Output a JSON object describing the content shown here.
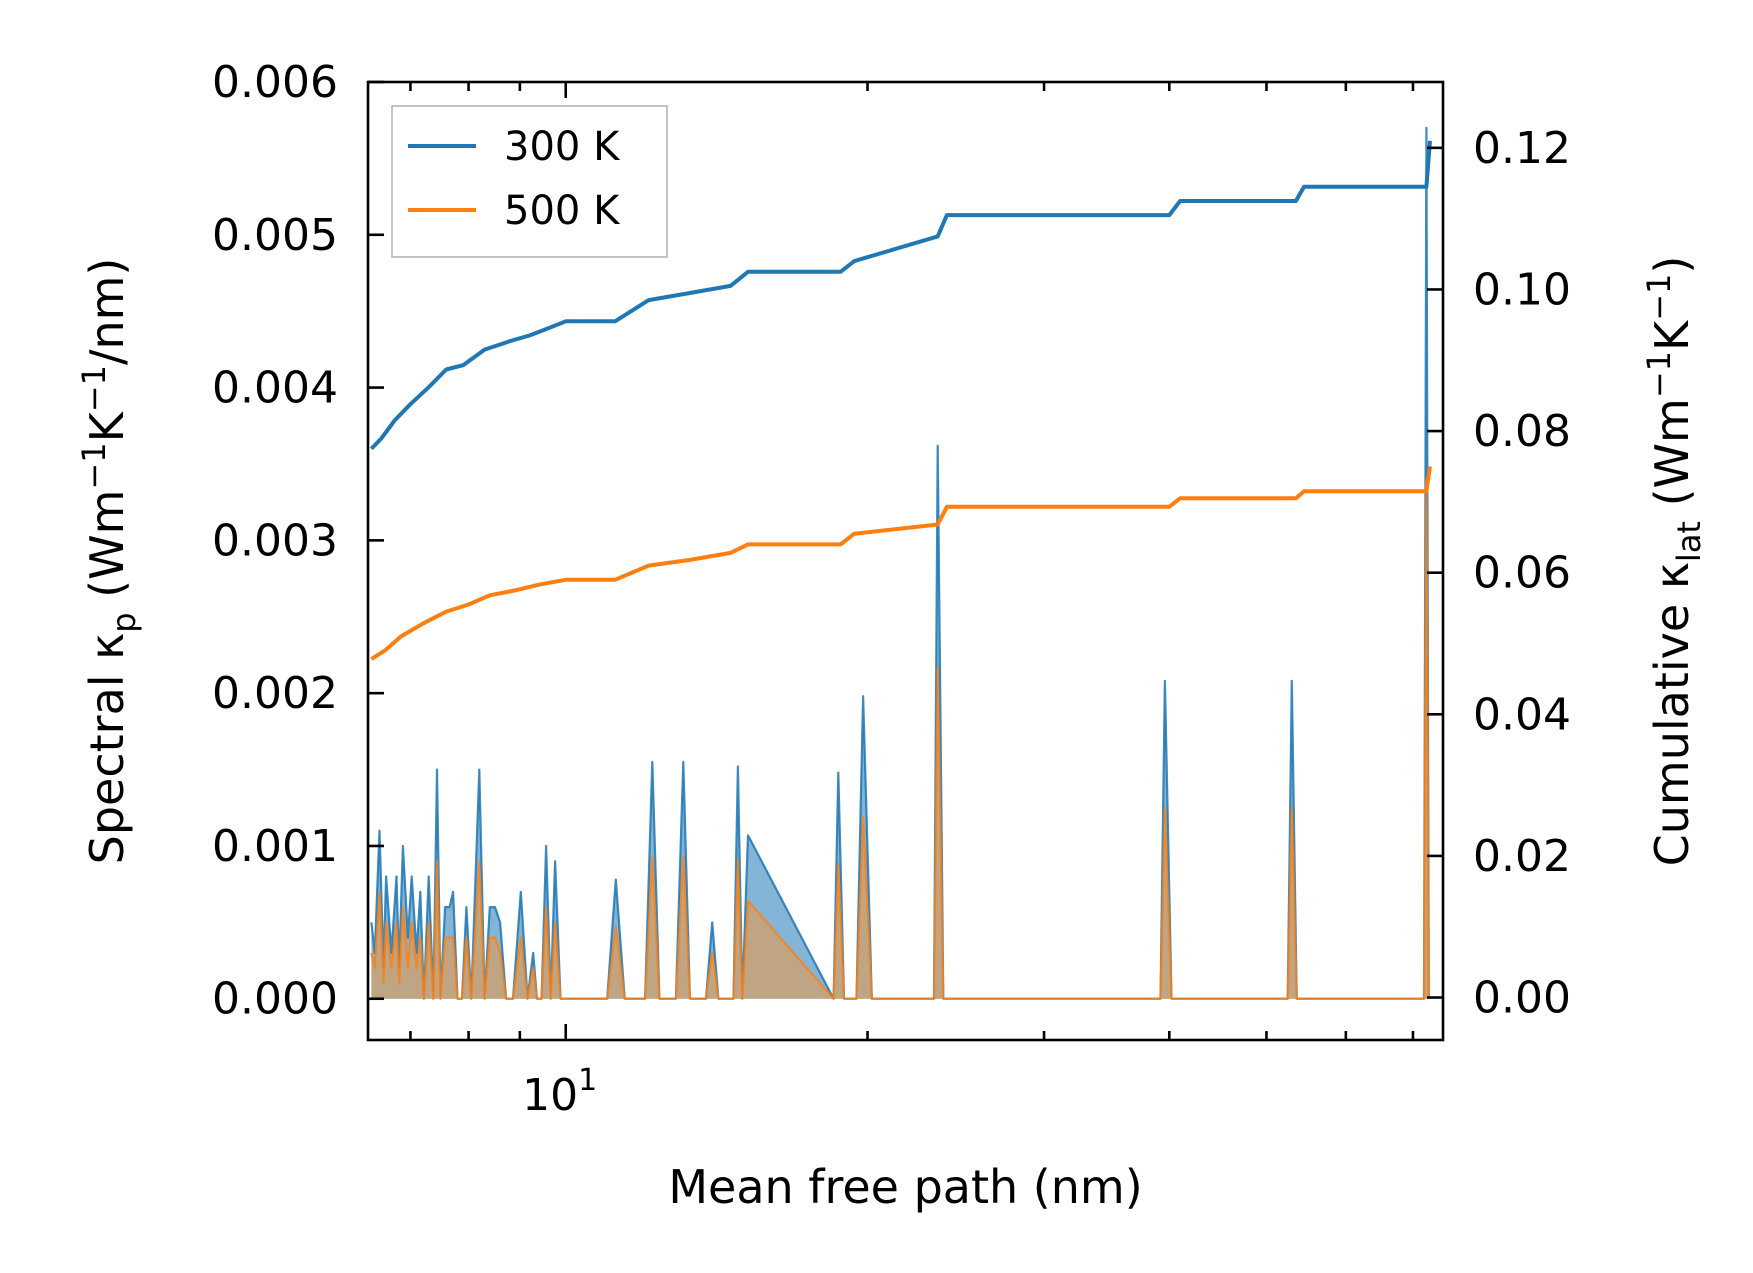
{
  "chart_data": {
    "type": "line",
    "xscale": "log",
    "xlim": [
      6.35,
      75
    ],
    "xlabel": "Mean free path (nm)",
    "xticks": [
      {
        "value": 10,
        "label": "10",
        "exp": "1"
      }
    ],
    "x_minor_ticks": [
      7,
      8,
      9,
      20,
      30,
      40,
      50,
      60,
      70
    ],
    "ylabel_left": {
      "main": "Spectral κ",
      "sub": "p",
      "pre": " (Wm",
      "sup1": "−1",
      "mid": "K",
      "sup2": "−1",
      "post": "/nm)"
    },
    "ylim_left": [
      -0.00027,
      0.006
    ],
    "yticks_left": [
      0,
      0.001,
      0.002,
      0.003,
      0.004,
      0.005,
      0.006
    ],
    "yticks_left_labels": [
      "0.000",
      "0.001",
      "0.002",
      "0.003",
      "0.004",
      "0.005",
      "0.006"
    ],
    "ylabel_right": {
      "main": "Cumulative κ",
      "sub": "lat",
      "pre": " (Wm",
      "sup1": "−1",
      "mid": "K",
      "sup2": "−1",
      "post": ")"
    },
    "ylim_right": [
      -0.006,
      0.1293
    ],
    "yticks_right": [
      0,
      0.02,
      0.04,
      0.06,
      0.08,
      0.1,
      0.12
    ],
    "yticks_right_labels": [
      "0.00",
      "0.02",
      "0.04",
      "0.06",
      "0.08",
      "0.10",
      "0.12"
    ],
    "legend": {
      "position": "top-left",
      "entries": [
        "300 K",
        "500 K"
      ]
    },
    "colors": {
      "300K": "#1f77b4",
      "500K": "#ff7f0e",
      "fill300": "#1f77b4",
      "fill500": "#d4a06a"
    },
    "series": [
      {
        "name": "300 K",
        "axis": "right",
        "kind": "cumulative",
        "x": [
          6.4,
          6.55,
          6.75,
          7.0,
          7.3,
          7.6,
          7.9,
          8.3,
          8.8,
          9.2,
          9.6,
          10.0,
          11.2,
          12.1,
          13.3,
          14.6,
          15.2,
          18.8,
          19.4,
          23.5,
          24.0,
          40.0,
          41.0,
          53.5,
          54.5,
          72.2,
          72.8
        ],
        "y": [
          0.0775,
          0.079,
          0.0815,
          0.0838,
          0.0862,
          0.0887,
          0.0893,
          0.0915,
          0.0927,
          0.0935,
          0.0945,
          0.0955,
          0.0955,
          0.0985,
          0.0995,
          0.1005,
          0.1025,
          0.1025,
          0.104,
          0.1075,
          0.1105,
          0.1105,
          0.1125,
          0.1125,
          0.1145,
          0.1145,
          0.121
        ]
      },
      {
        "name": "500 K",
        "axis": "right",
        "kind": "cumulative",
        "x": [
          6.4,
          6.6,
          6.85,
          7.2,
          7.6,
          8.0,
          8.4,
          8.9,
          9.4,
          10.0,
          11.2,
          12.1,
          13.3,
          14.6,
          15.2,
          18.8,
          19.4,
          23.5,
          24.0,
          40.0,
          41.0,
          53.5,
          54.5,
          72.2,
          72.8
        ],
        "y": [
          0.0478,
          0.049,
          0.051,
          0.0528,
          0.0545,
          0.0555,
          0.0568,
          0.0575,
          0.0583,
          0.059,
          0.059,
          0.061,
          0.0618,
          0.0628,
          0.064,
          0.064,
          0.0655,
          0.0668,
          0.0693,
          0.0693,
          0.0705,
          0.0705,
          0.0715,
          0.0715,
          0.075
        ]
      },
      {
        "name": "300 K spectral",
        "axis": "left",
        "kind": "spectral",
        "x": [
          6.4,
          6.45,
          6.52,
          6.58,
          6.62,
          6.7,
          6.78,
          6.82,
          6.88,
          6.96,
          7.02,
          7.1,
          7.16,
          7.22,
          7.3,
          7.38,
          7.44,
          7.5,
          7.58,
          7.66,
          7.72,
          7.8,
          7.88,
          7.96,
          8.05,
          8.2,
          8.3,
          8.4,
          8.5,
          8.6,
          8.72,
          8.86,
          9.02,
          9.16,
          9.28,
          9.36,
          9.46,
          9.56,
          9.66,
          9.76,
          9.88,
          10.0,
          10.1,
          10.2,
          10.3,
          11.0,
          11.22,
          11.45,
          12.0,
          12.2,
          12.4,
          12.88,
          13.1,
          13.3,
          13.8,
          14.0,
          14.2,
          14.7,
          14.85,
          15.0,
          15.2,
          18.5,
          18.7,
          18.95,
          19.5,
          19.8,
          20.2,
          23.3,
          23.5,
          23.8,
          39.2,
          39.6,
          40.2,
          52.5,
          53.0,
          53.6,
          71.8,
          72.2,
          72.6
        ],
        "y": [
          0.0005,
          0.0003,
          0.0011,
          0.0002,
          0.0008,
          0.0003,
          0.0008,
          0.0002,
          0.001,
          0.0004,
          0.0008,
          0.0003,
          0.0007,
          0.0,
          0.0008,
          0.0,
          0.0015,
          0.0,
          0.0006,
          0.0006,
          0.0007,
          0.0,
          0.0,
          0.0006,
          0.0,
          0.0015,
          0.0,
          0.0006,
          0.0006,
          0.0005,
          0.0,
          0.0,
          0.0007,
          0.0,
          0.0003,
          0.0,
          0.0,
          0.001,
          0.0,
          0.0009,
          0.0,
          0.0,
          0.0,
          0.0,
          0.0,
          0.0,
          0.00078,
          0.0,
          0.0,
          0.00155,
          0.0,
          0.0,
          0.00155,
          0.0,
          0.0,
          0.0005,
          0.0,
          0.0,
          0.00152,
          0.0,
          0.00107,
          0.0,
          0.00148,
          0.0,
          0.0,
          0.00198,
          0.0,
          0.0,
          0.00362,
          0.0,
          0.0,
          0.00208,
          0.0,
          0.0,
          0.00208,
          0.0,
          0.0,
          0.0057,
          0.0
        ]
      },
      {
        "name": "500 K spectral",
        "axis": "left",
        "kind": "spectral",
        "x": [
          6.4,
          6.45,
          6.52,
          6.58,
          6.62,
          6.7,
          6.78,
          6.82,
          6.88,
          6.96,
          7.02,
          7.1,
          7.16,
          7.22,
          7.3,
          7.38,
          7.44,
          7.5,
          7.58,
          7.66,
          7.72,
          7.8,
          7.88,
          7.96,
          8.05,
          8.2,
          8.3,
          8.4,
          8.5,
          8.6,
          8.72,
          8.86,
          9.02,
          9.16,
          9.28,
          9.36,
          9.46,
          9.56,
          9.66,
          9.76,
          9.88,
          10.0,
          10.1,
          10.2,
          10.3,
          11.0,
          11.22,
          11.45,
          12.0,
          12.2,
          12.4,
          12.88,
          13.1,
          13.3,
          13.8,
          14.0,
          14.2,
          14.7,
          14.85,
          15.0,
          15.2,
          18.5,
          18.7,
          18.95,
          19.5,
          19.8,
          20.2,
          23.3,
          23.5,
          23.8,
          39.2,
          39.6,
          40.2,
          52.5,
          53.0,
          53.6,
          71.8,
          72.2,
          72.6
        ],
        "y": [
          0.0003,
          0.0002,
          0.0007,
          0.0001,
          0.0005,
          0.0002,
          0.0005,
          0.0001,
          0.0006,
          0.0002,
          0.0005,
          0.0002,
          0.0004,
          0.0,
          0.0005,
          0.0,
          0.0009,
          0.0,
          0.0004,
          0.0004,
          0.0004,
          0.0,
          0.0,
          0.0004,
          0.0,
          0.0009,
          0.0,
          0.0004,
          0.0004,
          0.0003,
          0.0,
          0.0,
          0.0004,
          0.0,
          0.0002,
          0.0,
          0.0,
          0.0006,
          0.0,
          0.0005,
          0.0,
          0.0,
          0.0,
          0.0,
          0.0,
          0.0,
          0.00047,
          0.0,
          0.0,
          0.00093,
          0.0,
          0.0,
          0.00093,
          0.0,
          0.0,
          0.0003,
          0.0,
          0.0,
          0.00091,
          0.0,
          0.00064,
          0.0,
          0.00089,
          0.0,
          0.0,
          0.00119,
          0.0,
          0.0,
          0.00217,
          0.0,
          0.0,
          0.00125,
          0.0,
          0.0,
          0.00125,
          0.0,
          0.0,
          0.0034,
          0.0
        ]
      }
    ]
  }
}
